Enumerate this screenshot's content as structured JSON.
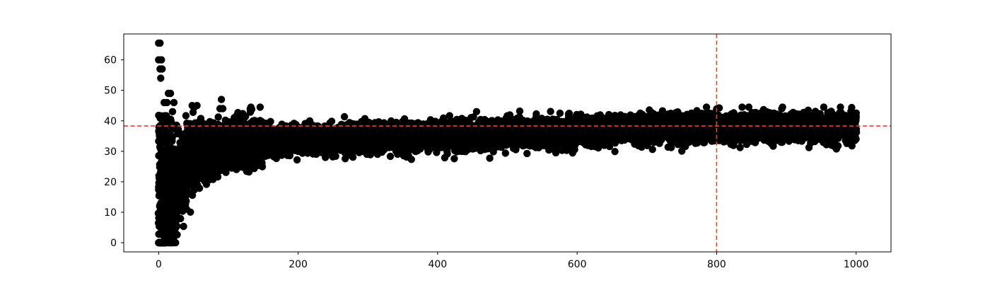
{
  "chart_data": {
    "type": "scatter",
    "title": "",
    "xlabel": "",
    "ylabel": "",
    "xlim": [
      -50,
      1050
    ],
    "ylim": [
      -3,
      68.5
    ],
    "x_ticks": [
      0,
      200,
      400,
      600,
      800,
      1000
    ],
    "y_ticks": [
      0,
      10,
      20,
      30,
      40,
      50,
      60
    ],
    "grid": false,
    "legend": "none",
    "colors": {
      "points": "#000000",
      "reference_lines": "#e8432d"
    },
    "reference_lines": [
      {
        "orientation": "horizontal",
        "value": 38.3,
        "style": "dashed"
      },
      {
        "orientation": "vertical",
        "value": 800,
        "style": "dashed"
      }
    ],
    "series": [
      {
        "marker": "circle",
        "x_range": [
          0,
          1000
        ],
        "trend_description": "noisy band rising from ~0 at x=0 to ~33 by x=100, then slowly increasing to ~38 by x=1000",
        "outliers": [
          {
            "x": 0,
            "y": 65.5
          },
          {
            "x": 2,
            "y": 65.5
          },
          {
            "x": 0,
            "y": 60
          },
          {
            "x": 4,
            "y": 60
          },
          {
            "x": 2,
            "y": 57
          },
          {
            "x": 5,
            "y": 57
          },
          {
            "x": 3,
            "y": 54
          },
          {
            "x": 8,
            "y": 46
          },
          {
            "x": 12,
            "y": 46
          },
          {
            "x": 14,
            "y": 49
          },
          {
            "x": 17,
            "y": 49
          },
          {
            "x": 22,
            "y": 46
          },
          {
            "x": 20,
            "y": 43
          },
          {
            "x": 48,
            "y": 45
          },
          {
            "x": 55,
            "y": 45
          },
          {
            "x": 90,
            "y": 47
          },
          {
            "x": 88,
            "y": 44
          },
          {
            "x": 92,
            "y": 44
          }
        ]
      }
    ]
  }
}
